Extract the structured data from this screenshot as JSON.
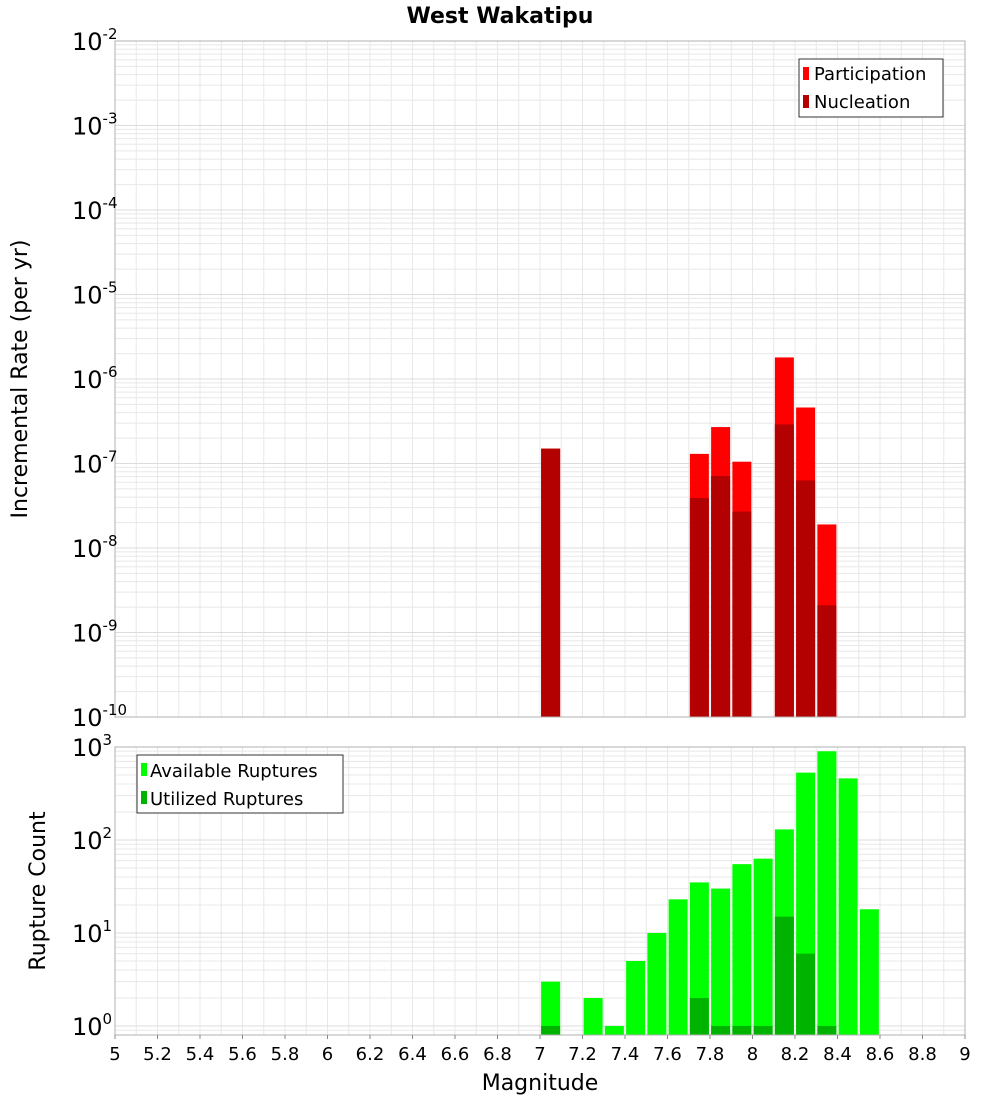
{
  "title": "West Wakatipu",
  "colors": {
    "participation": "#ff0000",
    "nucleation": "#b30000",
    "available": "#00ff00",
    "utilized": "#00b300",
    "grid": "#e8e8e8",
    "frame": "#b0b0b0"
  },
  "chart_data": [
    {
      "type": "bar",
      "scale": "log",
      "title": "West Wakatipu",
      "xlabel": "Magnitude",
      "ylabel": "Incremental Rate (per yr)",
      "xlim": [
        5,
        9
      ],
      "ylim": [
        1e-10,
        0.01
      ],
      "y_ticks": [
        {
          "base": "10",
          "exp": "-2"
        },
        {
          "base": "10",
          "exp": "-3"
        },
        {
          "base": "10",
          "exp": "-4"
        },
        {
          "base": "10",
          "exp": "-5"
        },
        {
          "base": "10",
          "exp": "-6"
        },
        {
          "base": "10",
          "exp": "-7"
        },
        {
          "base": "10",
          "exp": "-8"
        },
        {
          "base": "10",
          "exp": "-9"
        },
        {
          "base": "10",
          "exp": "-10"
        }
      ],
      "legend": {
        "position": "top-right",
        "entries": [
          "Participation",
          "Nucleation"
        ]
      },
      "series": [
        {
          "name": "Participation",
          "x": [
            7.05,
            7.75,
            7.85,
            7.95,
            8.15,
            8.25,
            8.35
          ],
          "values": [
            1.5e-07,
            1.3e-07,
            2.7e-07,
            1.05e-07,
            1.8e-06,
            4.6e-07,
            1.9e-08
          ]
        },
        {
          "name": "Nucleation",
          "x": [
            7.05,
            7.75,
            7.85,
            7.95,
            8.15,
            8.25,
            8.35
          ],
          "values": [
            1.5e-07,
            3.9e-08,
            7.1e-08,
            2.7e-08,
            2.9e-07,
            6.3e-08,
            2.1e-09
          ]
        }
      ]
    },
    {
      "type": "bar",
      "scale": "log",
      "xlabel": "Magnitude",
      "ylabel": "Rupture Count",
      "xlim": [
        5,
        9
      ],
      "ylim": [
        0.8,
        1000
      ],
      "x_ticks": [
        "5",
        "5.2",
        "5.4",
        "5.6",
        "5.8",
        "6",
        "6.2",
        "6.4",
        "6.6",
        "6.8",
        "7",
        "7.2",
        "7.4",
        "7.6",
        "7.8",
        "8",
        "8.2",
        "8.4",
        "8.6",
        "8.8",
        "9"
      ],
      "y_ticks": [
        {
          "base": "10",
          "exp": "3"
        },
        {
          "base": "10",
          "exp": "2"
        },
        {
          "base": "10",
          "exp": "1"
        },
        {
          "base": "10",
          "exp": "0"
        }
      ],
      "legend": {
        "position": "top-left",
        "entries": [
          "Available Ruptures",
          "Utilized Ruptures"
        ]
      },
      "series": [
        {
          "name": "Available Ruptures",
          "x": [
            7.05,
            7.25,
            7.35,
            7.45,
            7.55,
            7.65,
            7.75,
            7.85,
            7.95,
            8.05,
            8.15,
            8.25,
            8.35,
            8.45,
            8.55
          ],
          "values": [
            3,
            2,
            1,
            5,
            10,
            23,
            35,
            30,
            55,
            63,
            130,
            530,
            900,
            460,
            18
          ]
        },
        {
          "name": "Utilized Ruptures",
          "x": [
            7.05,
            7.75,
            7.85,
            7.95,
            8.05,
            8.15,
            8.25,
            8.35
          ],
          "values": [
            1,
            2,
            1,
            1,
            1,
            15,
            6,
            1
          ]
        }
      ]
    }
  ]
}
